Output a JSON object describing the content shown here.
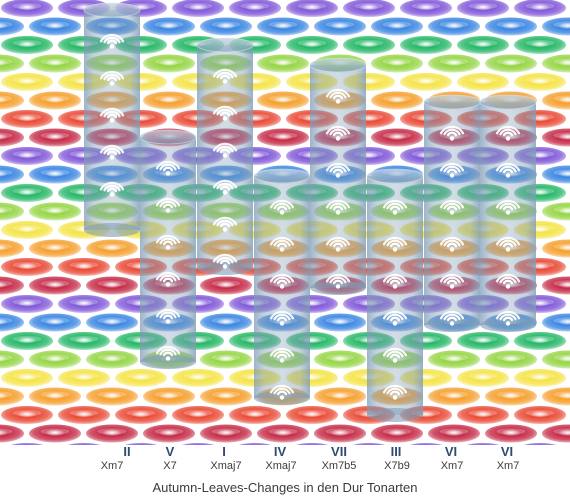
{
  "caption": "Autumn-Leaves-Changes in den Dur Tonarten",
  "columns": [
    {
      "degree": "II",
      "chord": "Xm7"
    },
    {
      "degree": "V",
      "chord": "X7"
    },
    {
      "degree": "I",
      "chord": "Xmaj7"
    },
    {
      "degree": "IV",
      "chord": "Xmaj7"
    },
    {
      "degree": "VII",
      "chord": "Xm7b5"
    },
    {
      "degree": "III",
      "chord": "X7b9"
    },
    {
      "degree": "VI",
      "chord": "Xm7"
    },
    {
      "degree": "VI",
      "chord": "Xm7"
    }
  ],
  "row_colors": [
    "#7a4fd6",
    "#2f7fe0",
    "#19b35e",
    "#8fd33a",
    "#f4e23b",
    "#f59a22",
    "#e8402a",
    "#c21f3d"
  ],
  "cylinder_color": "#7e9cb6",
  "icon": "wifi-icon"
}
